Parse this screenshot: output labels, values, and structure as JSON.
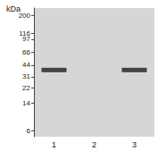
{
  "chart_data": {
    "type": "scatter",
    "title": "kDa",
    "categories": [
      "1",
      "2",
      "3"
    ],
    "values": [
      38,
      null,
      38
    ],
    "color": "#1e1e1e",
    "marker": "rect",
    "log": "y",
    "ylim": [
      5,
      250
    ],
    "yticks": [
      200,
      116,
      97,
      66,
      44,
      31,
      22,
      14,
      6
    ],
    "grid": false
  }
}
